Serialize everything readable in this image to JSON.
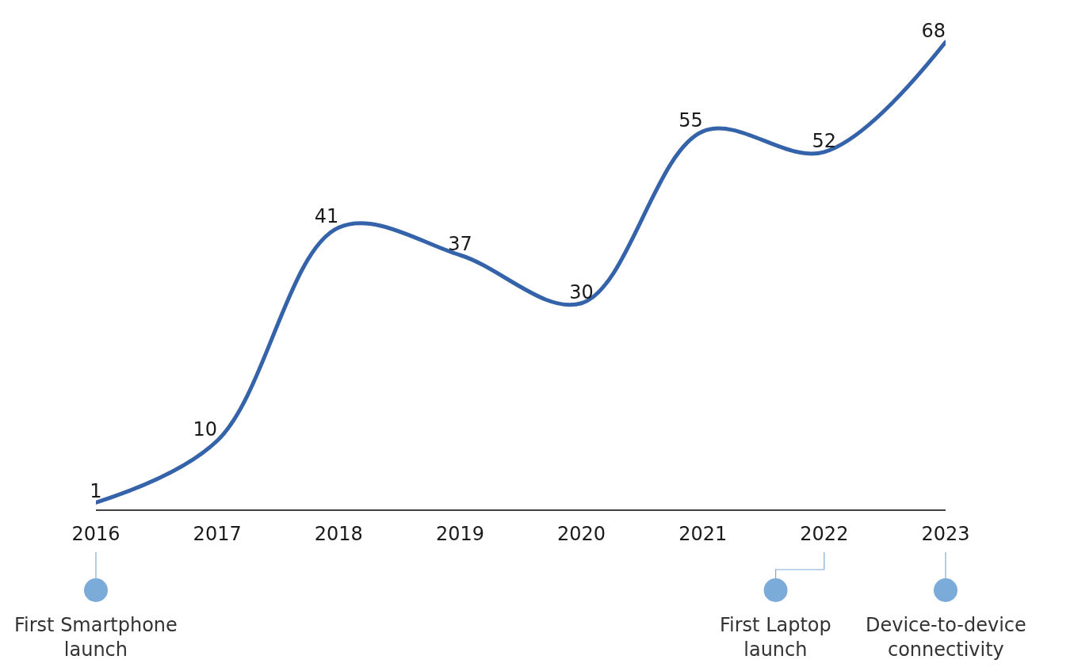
{
  "chart_data": {
    "type": "line",
    "categories": [
      "2016",
      "2017",
      "2018",
      "2019",
      "2020",
      "2021",
      "2022",
      "2023"
    ],
    "series": [
      {
        "color": "#3563aa",
        "values": [
          1,
          10,
          41,
          37,
          30,
          55,
          52,
          68
        ]
      }
    ],
    "tick_labels": "x",
    "data_labels": true,
    "annotations": [
      "First Smartphone launch",
      "First Laptop launch",
      "Device-to-device connectivity"
    ]
  }
}
